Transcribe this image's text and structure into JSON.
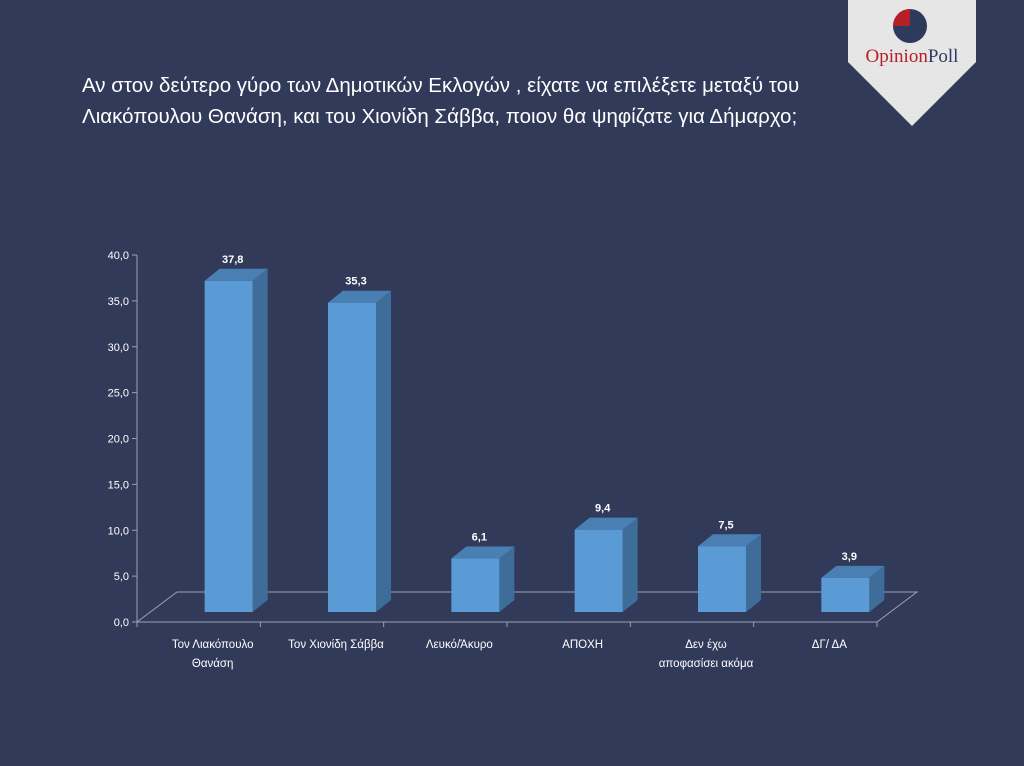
{
  "title": "Αν στον δεύτερο γύρο των Δημοτικών Εκλογών , είχατε να επιλέξετε μεταξύ του Λιακόπουλου Θανάση, και του Χιονίδη Σάββα, ποιον θα ψηφίζατε για Δήμαρχο;",
  "logo": {
    "word1": "Opinion",
    "word2": "Poll",
    "word1_color": "#b52025",
    "word2_color": "#2e3a5c"
  },
  "chart_data": {
    "type": "bar",
    "categories": [
      [
        "Τον Λιακόπουλο",
        "Θανάση"
      ],
      [
        "Τον Χιονίδη Σάββα"
      ],
      [
        "Λευκό/Άκυρο"
      ],
      [
        "ΑΠΟΧΗ"
      ],
      [
        "Δεν έχω",
        "αποφασίσει ακόμα"
      ],
      [
        "ΔΓ/ ΔΑ"
      ]
    ],
    "values": [
      37.8,
      35.3,
      6.1,
      9.4,
      7.5,
      3.9
    ],
    "value_labels": [
      "37,8",
      "35,3",
      "6,1",
      "9,4",
      "7,5",
      "3,9"
    ],
    "yticks": [
      "0,0",
      "5,0",
      "10,0",
      "15,0",
      "20,0",
      "25,0",
      "30,0",
      "35,0",
      "40,0"
    ],
    "ylim": [
      0,
      40
    ],
    "bar_color": "#5b9bd5",
    "grid": false,
    "style": "3d-column"
  }
}
